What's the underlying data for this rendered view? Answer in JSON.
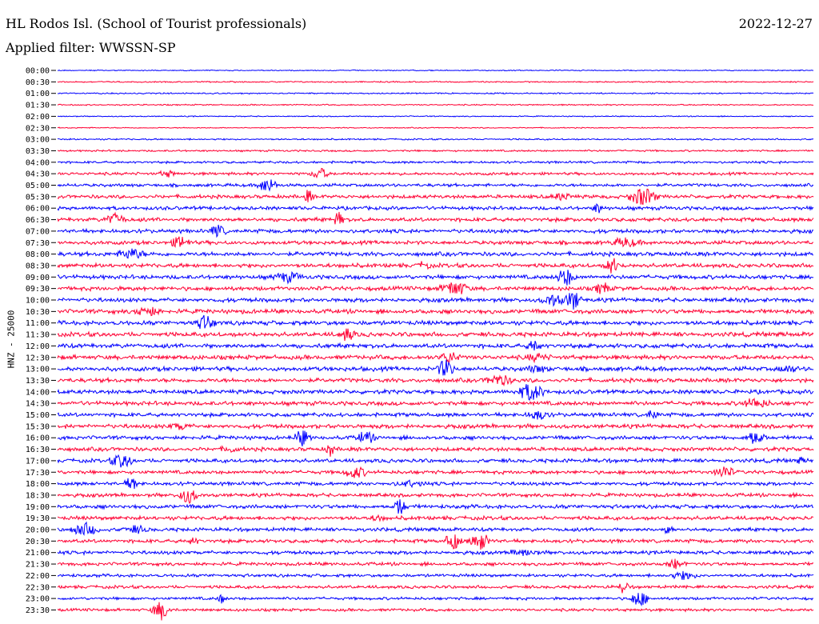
{
  "header": {
    "station": "HL Rodos Isl. (School of Tourist professionals)",
    "date": "2022-12-27",
    "filter": "Applied filter: WWSSN-SP"
  },
  "chart_data": {
    "type": "line",
    "title": "HL Rodos Isl. (School of Tourist professionals)",
    "ylabel": "HNZ - 25000",
    "row_labels": [
      "00:00",
      "00:30",
      "01:00",
      "01:30",
      "02:00",
      "02:30",
      "03:00",
      "03:30",
      "04:00",
      "04:30",
      "05:00",
      "05:30",
      "06:00",
      "06:30",
      "07:00",
      "07:30",
      "08:00",
      "08:30",
      "09:00",
      "09:30",
      "10:00",
      "10:30",
      "11:00",
      "11:30",
      "12:00",
      "12:30",
      "13:00",
      "13:30",
      "14:00",
      "14:30",
      "15:00",
      "15:30",
      "16:00",
      "16:30",
      "17:00",
      "17:30",
      "18:00",
      "18:30",
      "19:00",
      "19:30",
      "20:00",
      "20:30",
      "21:00",
      "21:30",
      "22:00",
      "22:30",
      "23:00",
      "23:30"
    ],
    "colors": [
      "#0000ff",
      "#ff0033"
    ],
    "relative_amplitude": [
      0.2,
      0.25,
      0.25,
      0.25,
      0.2,
      0.2,
      0.3,
      0.35,
      0.45,
      0.55,
      0.6,
      0.7,
      0.7,
      0.75,
      0.75,
      0.75,
      0.8,
      0.8,
      0.8,
      0.8,
      0.8,
      0.85,
      0.85,
      0.85,
      0.85,
      0.85,
      0.85,
      0.8,
      0.8,
      0.8,
      0.75,
      0.8,
      0.75,
      0.75,
      0.75,
      0.7,
      0.7,
      0.7,
      0.75,
      0.75,
      0.7,
      0.7,
      0.7,
      0.65,
      0.6,
      0.6,
      0.55,
      0.55
    ]
  }
}
